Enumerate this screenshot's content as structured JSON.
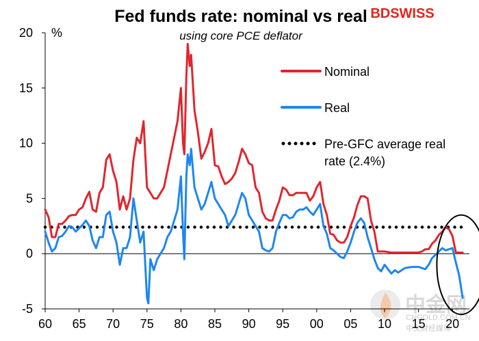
{
  "brand": {
    "name": "BDSWISS",
    "accent": "#e2241a"
  },
  "watermark": {
    "logo_text": "中金网",
    "url": "CNGOLD.COM.CN",
    "tagline": "中文财经媒体"
  },
  "colors": {
    "nominal": "#e0262e",
    "real": "#1e86f0",
    "avg": "#000000"
  },
  "chart_data": {
    "type": "line",
    "title": "Fed funds rate: nominal vs real",
    "subtitle": "using core PCE deflator",
    "ylabel": "%",
    "xlabel": "",
    "ylim": [
      -5,
      20
    ],
    "yticks": [
      -5,
      0,
      5,
      10,
      15,
      20
    ],
    "xlim": [
      1960,
      2022.5
    ],
    "xticks": [
      {
        "year": 1960,
        "label": "60"
      },
      {
        "year": 1965,
        "label": "65"
      },
      {
        "year": 1970,
        "label": "70"
      },
      {
        "year": 1975,
        "label": "75"
      },
      {
        "year": 1980,
        "label": "80"
      },
      {
        "year": 1985,
        "label": "85"
      },
      {
        "year": 1990,
        "label": "90"
      },
      {
        "year": 1995,
        "label": "95"
      },
      {
        "year": 2000,
        "label": "00"
      },
      {
        "year": 2005,
        "label": "05"
      },
      {
        "year": 2010,
        "label": "10"
      },
      {
        "year": 2015,
        "label": "15"
      },
      {
        "year": 2020,
        "label": "20"
      }
    ],
    "grid": false,
    "legend_position": "right",
    "legend": [
      {
        "key": "nominal",
        "label": "Nominal"
      },
      {
        "key": "real",
        "label": "Real"
      },
      {
        "key": "avg",
        "label_lines": [
          "Pre-GFC average real",
          "rate (2.4%)"
        ]
      }
    ],
    "reference_line": {
      "name": "Pre-GFC average real rate (2.4%)",
      "value": 2.4,
      "x_start": 1960,
      "x_end": 2021.5
    },
    "annotation": {
      "type": "ellipse",
      "x_center": 2021.3,
      "y_center": -1.0,
      "x_radius": 3.6,
      "y_radius": 4.5
    },
    "series": [
      {
        "name": "Nominal",
        "x": [
          1960.0,
          1960.5,
          1961.0,
          1961.5,
          1962.0,
          1962.5,
          1963.0,
          1963.5,
          1964.0,
          1964.5,
          1965.0,
          1965.5,
          1966.0,
          1966.5,
          1967.0,
          1967.5,
          1968.0,
          1968.5,
          1969.0,
          1969.5,
          1970.0,
          1970.5,
          1971.0,
          1971.5,
          1972.0,
          1972.5,
          1973.0,
          1973.5,
          1974.0,
          1974.5,
          1975.0,
          1975.5,
          1976.0,
          1976.5,
          1977.0,
          1977.5,
          1978.0,
          1978.5,
          1979.0,
          1979.5,
          1980.0,
          1980.3,
          1980.5,
          1980.8,
          1981.0,
          1981.3,
          1981.5,
          1982.0,
          1982.5,
          1983.0,
          1983.5,
          1984.0,
          1984.5,
          1985.0,
          1985.5,
          1986.0,
          1986.5,
          1987.0,
          1987.5,
          1988.0,
          1988.5,
          1989.0,
          1989.5,
          1990.0,
          1990.5,
          1991.0,
          1991.5,
          1992.0,
          1992.5,
          1993.0,
          1993.5,
          1994.0,
          1994.5,
          1995.0,
          1995.5,
          1996.0,
          1996.5,
          1997.0,
          1997.5,
          1998.0,
          1998.5,
          1999.0,
          1999.5,
          2000.0,
          2000.5,
          2001.0,
          2001.5,
          2002.0,
          2002.5,
          2003.0,
          2003.5,
          2004.0,
          2004.5,
          2005.0,
          2005.5,
          2006.0,
          2006.5,
          2007.0,
          2007.5,
          2008.0,
          2008.5,
          2009.0,
          2010.0,
          2011.0,
          2012.0,
          2013.0,
          2014.0,
          2015.0,
          2015.5,
          2016.0,
          2016.5,
          2017.0,
          2017.5,
          2018.0,
          2018.5,
          2019.0,
          2019.5,
          2020.0,
          2020.3,
          2020.5,
          2021.0,
          2021.5
        ],
        "values": [
          4.0,
          3.3,
          1.5,
          1.5,
          2.7,
          2.7,
          3.0,
          3.4,
          3.5,
          3.5,
          4.0,
          4.2,
          5.0,
          5.6,
          4.0,
          3.8,
          5.5,
          6.0,
          8.5,
          9.0,
          7.5,
          6.5,
          4.0,
          5.2,
          4.0,
          5.0,
          8.5,
          10.5,
          10.0,
          12.0,
          6.0,
          5.5,
          5.0,
          5.0,
          5.5,
          6.0,
          7.5,
          9.0,
          10.5,
          12.0,
          15.0,
          10.0,
          9.0,
          16.0,
          19.0,
          17.0,
          18.0,
          13.0,
          11.0,
          8.6,
          9.2,
          10.0,
          11.3,
          8.0,
          7.9,
          7.0,
          6.3,
          6.5,
          6.8,
          7.3,
          8.3,
          9.5,
          9.0,
          8.2,
          8.0,
          6.0,
          5.5,
          3.8,
          3.2,
          3.0,
          3.0,
          4.0,
          4.8,
          6.0,
          5.8,
          5.3,
          5.3,
          5.5,
          5.5,
          5.5,
          5.5,
          4.8,
          5.2,
          6.0,
          6.5,
          4.5,
          3.5,
          1.8,
          1.7,
          1.2,
          1.0,
          1.0,
          1.5,
          2.5,
          3.3,
          4.4,
          5.2,
          5.2,
          5.0,
          3.0,
          2.0,
          0.2,
          0.2,
          0.1,
          0.1,
          0.1,
          0.1,
          0.1,
          0.2,
          0.4,
          0.4,
          0.9,
          1.2,
          1.7,
          2.0,
          2.4,
          2.2,
          1.6,
          0.7,
          0.1,
          0.1,
          0.1
        ]
      },
      {
        "name": "Real",
        "x": [
          1960.0,
          1960.5,
          1961.0,
          1961.5,
          1962.0,
          1962.5,
          1963.0,
          1963.5,
          1964.0,
          1964.5,
          1965.0,
          1965.5,
          1966.0,
          1966.5,
          1967.0,
          1967.5,
          1968.0,
          1968.5,
          1969.0,
          1969.5,
          1970.0,
          1970.5,
          1971.0,
          1971.5,
          1972.0,
          1972.5,
          1973.0,
          1973.5,
          1974.0,
          1974.5,
          1975.0,
          1975.2,
          1975.5,
          1976.0,
          1976.5,
          1977.0,
          1977.5,
          1978.0,
          1978.5,
          1979.0,
          1979.5,
          1980.0,
          1980.3,
          1980.5,
          1980.8,
          1981.0,
          1981.3,
          1981.5,
          1982.0,
          1982.5,
          1983.0,
          1983.5,
          1984.0,
          1984.5,
          1985.0,
          1985.5,
          1986.0,
          1986.5,
          1987.0,
          1987.5,
          1988.0,
          1988.5,
          1989.0,
          1989.5,
          1990.0,
          1990.5,
          1991.0,
          1991.5,
          1992.0,
          1992.5,
          1993.0,
          1993.5,
          1994.0,
          1994.5,
          1995.0,
          1995.5,
          1996.0,
          1996.5,
          1997.0,
          1997.5,
          1998.0,
          1998.5,
          1999.0,
          1999.5,
          2000.0,
          2000.5,
          2001.0,
          2001.5,
          2002.0,
          2002.5,
          2003.0,
          2003.5,
          2004.0,
          2004.5,
          2005.0,
          2005.5,
          2006.0,
          2006.5,
          2007.0,
          2007.5,
          2008.0,
          2008.5,
          2009.0,
          2009.5,
          2010.0,
          2011.0,
          2011.5,
          2012.0,
          2013.0,
          2014.0,
          2015.0,
          2016.0,
          2016.5,
          2017.0,
          2017.5,
          2018.0,
          2018.5,
          2019.0,
          2019.5,
          2020.0,
          2020.3,
          2020.5,
          2021.0,
          2021.3,
          2021.5
        ],
        "values": [
          2.0,
          1.0,
          0.2,
          0.5,
          1.5,
          1.6,
          2.0,
          2.5,
          2.4,
          2.0,
          2.3,
          2.6,
          3.0,
          2.5,
          1.2,
          0.5,
          1.5,
          1.5,
          3.5,
          3.8,
          2.0,
          1.0,
          -1.0,
          0.5,
          0.5,
          1.5,
          5.0,
          3.0,
          1.0,
          2.0,
          -4.0,
          -4.5,
          -0.5,
          -1.5,
          -0.5,
          0.0,
          0.5,
          1.5,
          2.0,
          3.0,
          4.0,
          7.0,
          2.0,
          -0.5,
          7.0,
          9.0,
          8.0,
          9.5,
          6.0,
          5.0,
          4.0,
          4.5,
          5.5,
          6.5,
          5.0,
          4.5,
          4.0,
          3.5,
          2.5,
          3.0,
          3.5,
          4.5,
          5.5,
          5.0,
          3.5,
          3.0,
          2.5,
          2.0,
          0.5,
          0.3,
          0.2,
          0.5,
          2.0,
          2.8,
          3.5,
          3.5,
          3.2,
          3.3,
          3.8,
          4.0,
          4.0,
          4.2,
          3.8,
          3.5,
          4.0,
          4.5,
          2.5,
          1.8,
          0.5,
          0.3,
          0.0,
          -0.3,
          -0.4,
          0.2,
          1.0,
          2.0,
          2.8,
          3.2,
          2.8,
          1.5,
          0.5,
          -0.5,
          -1.3,
          -1.6,
          -1.0,
          -1.8,
          -1.5,
          -1.7,
          -1.3,
          -1.2,
          -1.2,
          -1.4,
          -1.0,
          -0.4,
          -0.1,
          0.2,
          0.5,
          0.3,
          0.4,
          0.5,
          -0.3,
          -0.8,
          -2.0,
          -3.2,
          -4.0
        ]
      }
    ]
  }
}
